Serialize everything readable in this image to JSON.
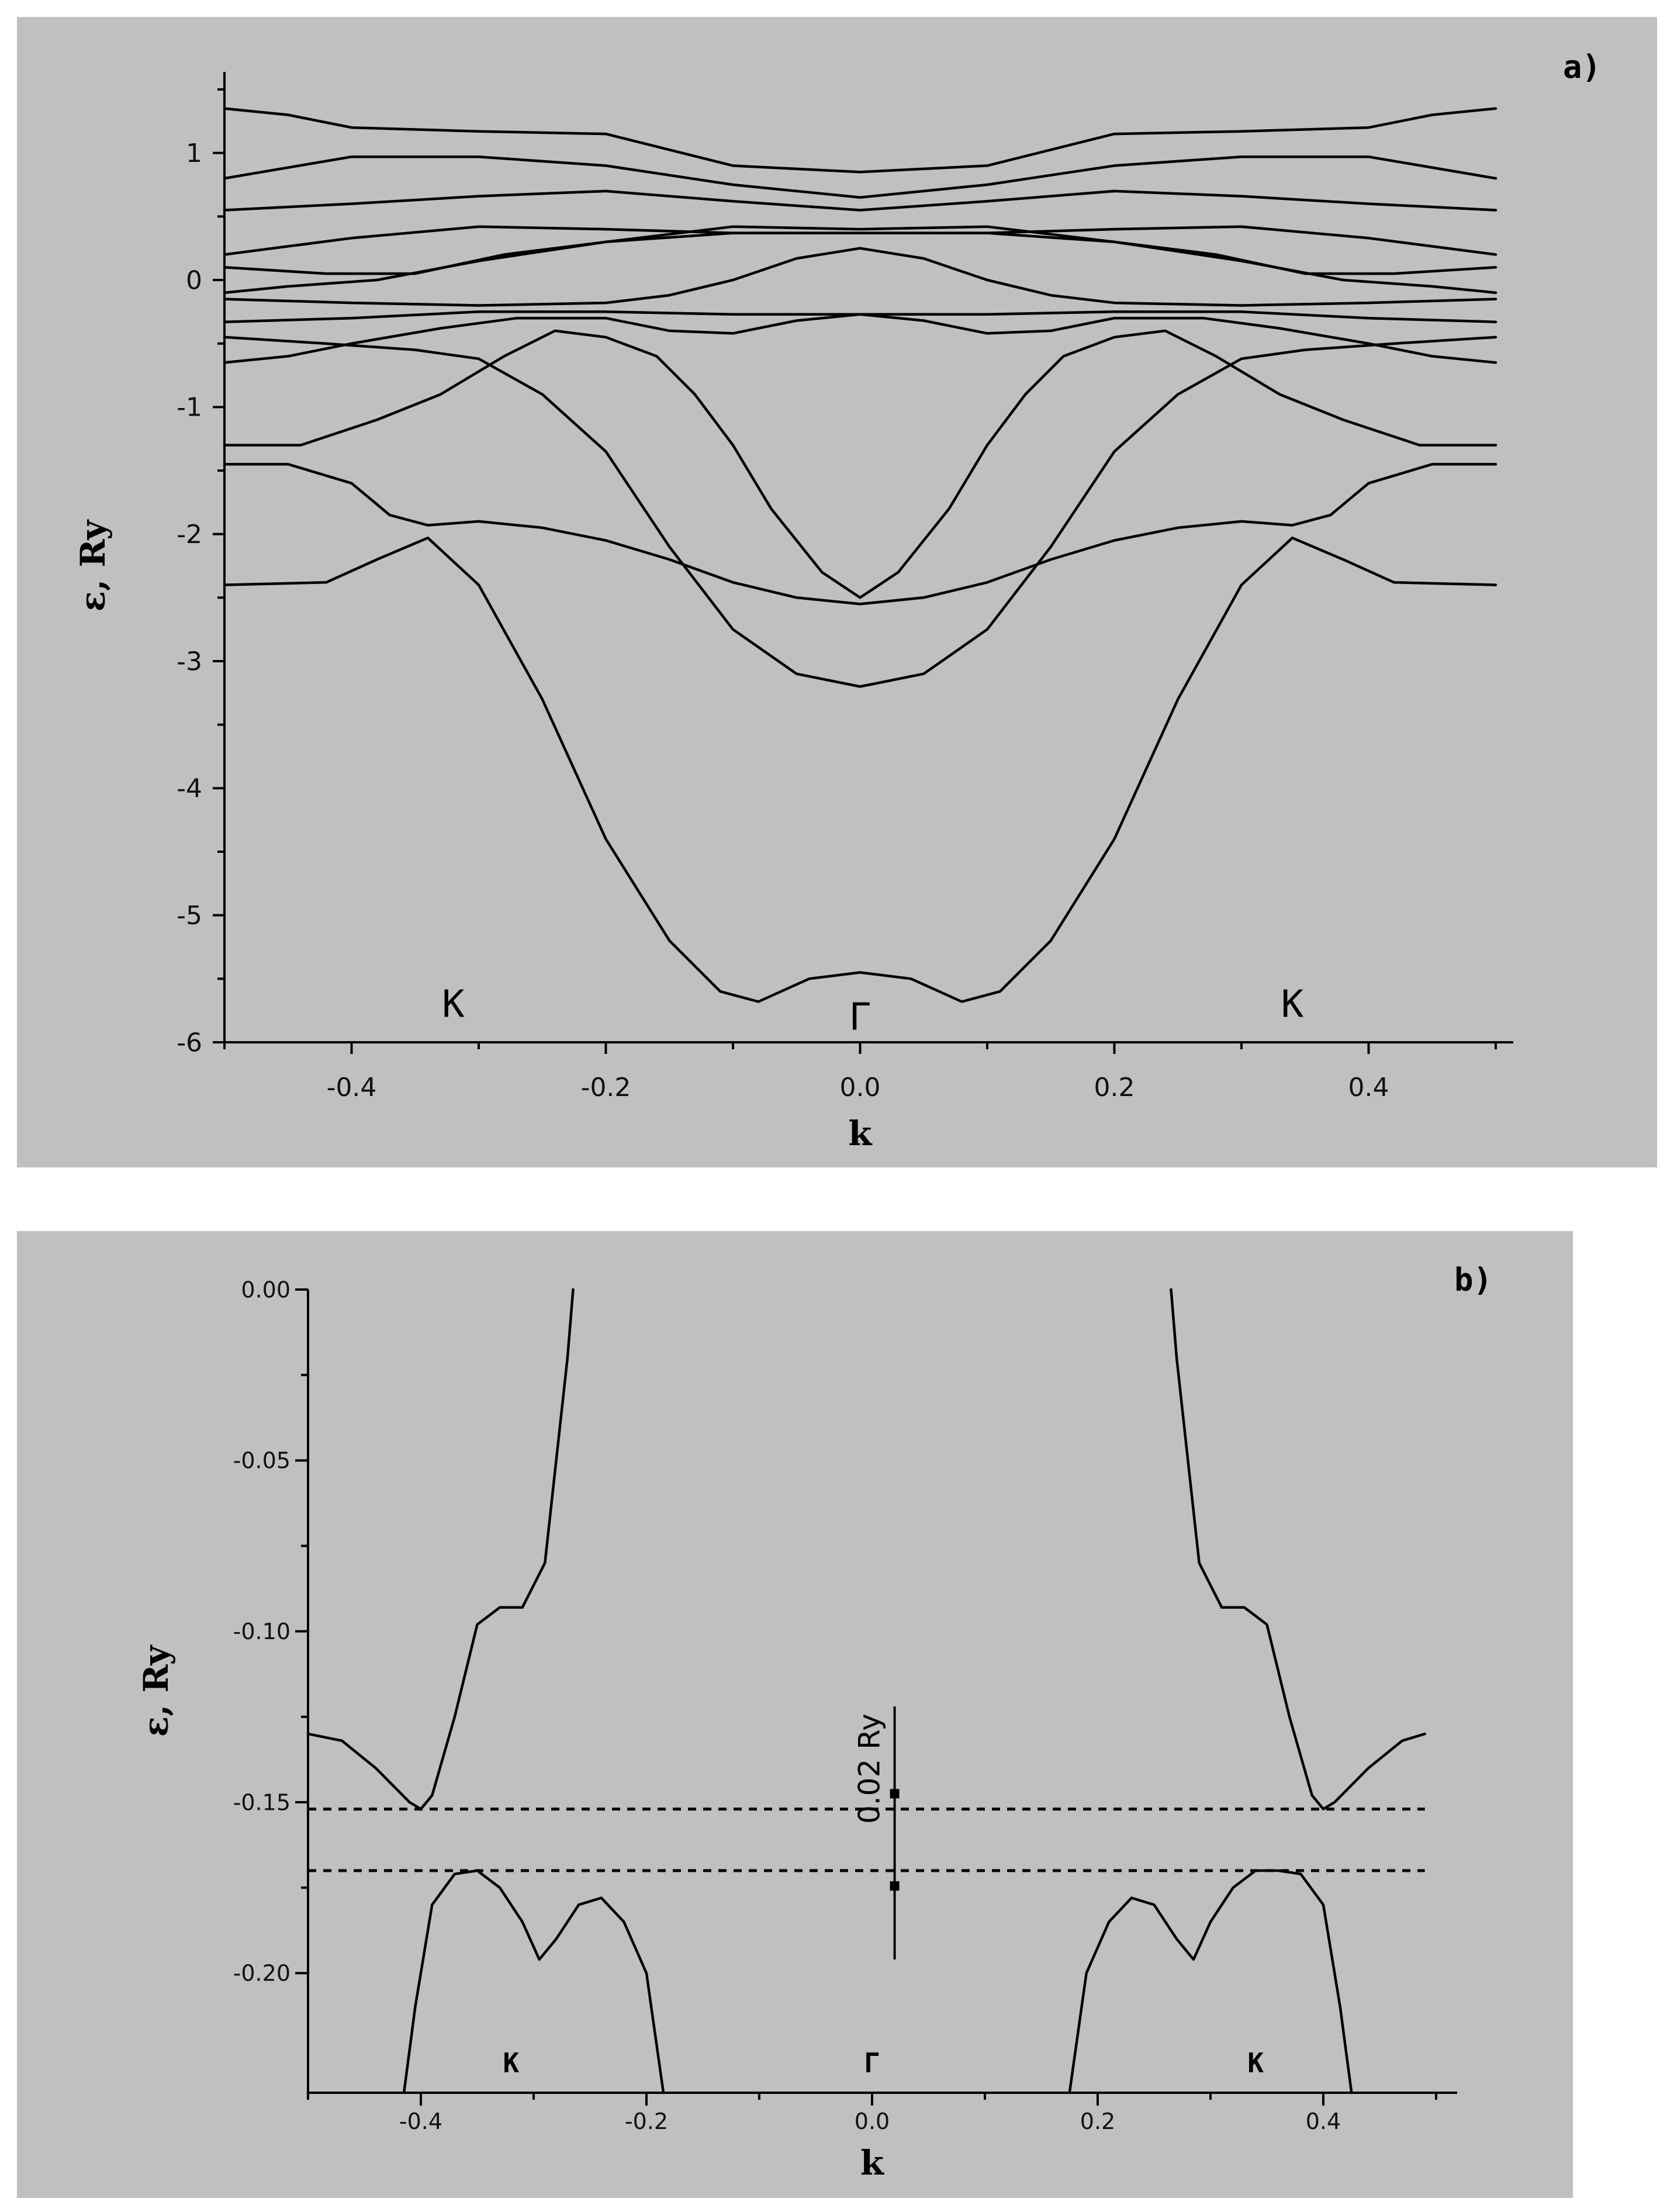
{
  "chart_data": [
    {
      "type": "line",
      "panel_label": "a)",
      "xlabel": "k",
      "ylabel": "ε, Ry",
      "xlim": [
        -0.5,
        0.5
      ],
      "ylim": [
        -6,
        1.5
      ],
      "xticks": [
        "-0.4",
        "-0.2",
        "0.0",
        "0.2",
        "0.4"
      ],
      "xtick_values": [
        -0.4,
        -0.2,
        0.0,
        0.2,
        0.4
      ],
      "yticks": [
        "1",
        "0",
        "-1",
        "-2",
        "-3",
        "-4",
        "-5",
        "-6"
      ],
      "ytick_values": [
        1,
        0,
        -1,
        -2,
        -3,
        -4,
        -5,
        -6
      ],
      "point_labels": [
        {
          "text": "K",
          "x": -0.32,
          "y": -5.8
        },
        {
          "text": "Γ",
          "x": 0.0,
          "y": -5.9
        },
        {
          "text": "K",
          "x": 0.34,
          "y": -5.8
        }
      ],
      "series": [
        {
          "points": [
            [
              0,
              -5.45
            ],
            [
              0.04,
              -5.5
            ],
            [
              0.08,
              -5.68
            ],
            [
              0.11,
              -5.6
            ],
            [
              0.15,
              -5.2
            ],
            [
              0.2,
              -4.4
            ],
            [
              0.25,
              -3.3
            ],
            [
              0.3,
              -2.4
            ],
            [
              0.34,
              -2.03
            ],
            [
              0.38,
              -2.2
            ],
            [
              0.42,
              -2.38
            ],
            [
              0.5,
              -2.4
            ]
          ]
        },
        {
          "points": [
            [
              0,
              -3.2
            ],
            [
              0.05,
              -3.1
            ],
            [
              0.1,
              -2.75
            ],
            [
              0.15,
              -2.1
            ],
            [
              0.2,
              -1.35
            ],
            [
              0.25,
              -0.9
            ],
            [
              0.3,
              -0.62
            ],
            [
              0.35,
              -0.55
            ],
            [
              0.42,
              -0.5
            ],
            [
              0.5,
              -0.45
            ]
          ]
        },
        {
          "points": [
            [
              0,
              -2.55
            ],
            [
              0.05,
              -2.5
            ],
            [
              0.1,
              -2.38
            ],
            [
              0.15,
              -2.2
            ],
            [
              0.2,
              -2.05
            ],
            [
              0.25,
              -1.95
            ],
            [
              0.3,
              -1.9
            ],
            [
              0.34,
              -1.93
            ],
            [
              0.37,
              -1.85
            ],
            [
              0.4,
              -1.6
            ],
            [
              0.45,
              -1.45
            ],
            [
              0.5,
              -1.45
            ]
          ]
        },
        {
          "points": [
            [
              0,
              -2.5
            ],
            [
              0.03,
              -2.3
            ],
            [
              0.07,
              -1.8
            ],
            [
              0.1,
              -1.3
            ],
            [
              0.13,
              -0.9
            ],
            [
              0.16,
              -0.6
            ],
            [
              0.2,
              -0.45
            ],
            [
              0.24,
              -0.4
            ],
            [
              0.28,
              -0.6
            ],
            [
              0.33,
              -0.9
            ],
            [
              0.38,
              -1.1
            ],
            [
              0.44,
              -1.3
            ],
            [
              0.5,
              -1.3
            ]
          ]
        },
        {
          "points": [
            [
              0,
              -0.27
            ],
            [
              0.05,
              -0.32
            ],
            [
              0.1,
              -0.42
            ],
            [
              0.15,
              -0.4
            ],
            [
              0.2,
              -0.3
            ],
            [
              0.27,
              -0.3
            ],
            [
              0.33,
              -0.38
            ],
            [
              0.4,
              -0.5
            ],
            [
              0.45,
              -0.6
            ],
            [
              0.5,
              -0.65
            ]
          ]
        },
        {
          "points": [
            [
              0,
              -0.27
            ],
            [
              0.1,
              -0.27
            ],
            [
              0.2,
              -0.25
            ],
            [
              0.3,
              -0.25
            ],
            [
              0.4,
              -0.3
            ],
            [
              0.5,
              -0.33
            ]
          ]
        },
        {
          "points": [
            [
              0,
              0.25
            ],
            [
              0.05,
              0.17
            ],
            [
              0.1,
              0.0
            ],
            [
              0.15,
              -0.12
            ],
            [
              0.2,
              -0.18
            ],
            [
              0.3,
              -0.2
            ],
            [
              0.4,
              -0.18
            ],
            [
              0.5,
              -0.15
            ]
          ]
        },
        {
          "points": [
            [
              0,
              0.37
            ],
            [
              0.1,
              0.37
            ],
            [
              0.2,
              0.3
            ],
            [
              0.3,
              0.15
            ],
            [
              0.38,
              0.0
            ],
            [
              0.45,
              -0.05
            ],
            [
              0.5,
              -0.1
            ]
          ]
        },
        {
          "points": [
            [
              0,
              0.4
            ],
            [
              0.1,
              0.42
            ],
            [
              0.2,
              0.3
            ],
            [
              0.28,
              0.2
            ],
            [
              0.35,
              0.05
            ],
            [
              0.42,
              0.05
            ],
            [
              0.5,
              0.1
            ]
          ]
        },
        {
          "points": [
            [
              0,
              0.37
            ],
            [
              0.1,
              0.37
            ],
            [
              0.2,
              0.4
            ],
            [
              0.3,
              0.42
            ],
            [
              0.4,
              0.33
            ],
            [
              0.5,
              0.2
            ]
          ]
        },
        {
          "points": [
            [
              0,
              0.55
            ],
            [
              0.1,
              0.62
            ],
            [
              0.2,
              0.7
            ],
            [
              0.3,
              0.66
            ],
            [
              0.4,
              0.6
            ],
            [
              0.5,
              0.55
            ]
          ]
        },
        {
          "points": [
            [
              0,
              0.65
            ],
            [
              0.1,
              0.75
            ],
            [
              0.2,
              0.9
            ],
            [
              0.3,
              0.97
            ],
            [
              0.4,
              0.97
            ],
            [
              0.5,
              0.8
            ]
          ]
        },
        {
          "points": [
            [
              0,
              0.85
            ],
            [
              0.1,
              0.9
            ],
            [
              0.2,
              1.15
            ],
            [
              0.3,
              1.17
            ],
            [
              0.4,
              1.2
            ],
            [
              0.45,
              1.3
            ],
            [
              0.5,
              1.35
            ]
          ]
        }
      ]
    },
    {
      "type": "line",
      "panel_label": "b)",
      "xlabel": "k",
      "ylabel": "ε, Ry",
      "xlim": [
        -0.5,
        0.5
      ],
      "ylim": [
        -0.235,
        0.0
      ],
      "xticks": [
        "-0.4",
        "-0.2",
        "0.0",
        "0.2",
        "0.4"
      ],
      "xtick_values": [
        -0.4,
        -0.2,
        0.0,
        0.2,
        0.4
      ],
      "yticks": [
        "0.00",
        "-0.05",
        "-0.10",
        "-0.15",
        "-0.20"
      ],
      "ytick_values": [
        0.0,
        -0.05,
        -0.1,
        -0.15,
        -0.2
      ],
      "point_labels": [
        {
          "text": "K",
          "x": -0.32,
          "y": -0.229
        },
        {
          "text": "Γ",
          "x": 0.0,
          "y": -0.229
        },
        {
          "text": "K",
          "x": 0.34,
          "y": -0.229
        }
      ],
      "reference_lines": [
        -0.152,
        -0.17
      ],
      "scale_bar": {
        "label": "0.02 Ry",
        "x": 0.02,
        "y_range": [
          -0.122,
          -0.196
        ],
        "marks": [
          -0.1475,
          -0.1745
        ]
      },
      "series": [
        {
          "points": [
            [
              -0.5,
              -0.13
            ],
            [
              -0.47,
              -0.132
            ],
            [
              -0.44,
              -0.14
            ],
            [
              -0.41,
              -0.15
            ],
            [
              -0.4,
              -0.152
            ],
            [
              -0.39,
              -0.148
            ],
            [
              -0.37,
              -0.125
            ],
            [
              -0.35,
              -0.098
            ],
            [
              -0.33,
              -0.093
            ],
            [
              -0.31,
              -0.093
            ],
            [
              -0.29,
              -0.08
            ],
            [
              -0.28,
              -0.05
            ],
            [
              -0.27,
              -0.02
            ],
            [
              -0.265,
              0.0
            ]
          ]
        },
        {
          "points": [
            [
              0.265,
              0.0
            ],
            [
              0.27,
              -0.02
            ],
            [
              0.28,
              -0.05
            ],
            [
              0.29,
              -0.08
            ],
            [
              0.31,
              -0.093
            ],
            [
              0.33,
              -0.093
            ],
            [
              0.35,
              -0.098
            ],
            [
              0.37,
              -0.125
            ],
            [
              0.39,
              -0.148
            ],
            [
              0.4,
              -0.152
            ],
            [
              0.41,
              -0.15
            ],
            [
              0.44,
              -0.14
            ],
            [
              0.47,
              -0.132
            ],
            [
              0.49,
              -0.13
            ]
          ]
        },
        {
          "points": [
            [
              -0.415,
              -0.235
            ],
            [
              -0.405,
              -0.21
            ],
            [
              -0.39,
              -0.18
            ],
            [
              -0.37,
              -0.171
            ],
            [
              -0.35,
              -0.17
            ],
            [
              -0.33,
              -0.175
            ],
            [
              -0.31,
              -0.185
            ],
            [
              -0.295,
              -0.196
            ],
            [
              -0.28,
              -0.19
            ],
            [
              -0.26,
              -0.18
            ],
            [
              -0.24,
              -0.178
            ],
            [
              -0.22,
              -0.185
            ],
            [
              -0.2,
              -0.2
            ],
            [
              -0.185,
              -0.235
            ]
          ]
        },
        {
          "points": [
            [
              0.175,
              -0.235
            ],
            [
              0.19,
              -0.2
            ],
            [
              0.21,
              -0.185
            ],
            [
              0.23,
              -0.178
            ],
            [
              0.25,
              -0.18
            ],
            [
              0.27,
              -0.19
            ],
            [
              0.285,
              -0.196
            ],
            [
              0.3,
              -0.185
            ],
            [
              0.32,
              -0.175
            ],
            [
              0.34,
              -0.17
            ],
            [
              0.36,
              -0.17
            ],
            [
              0.38,
              -0.171
            ],
            [
              0.4,
              -0.18
            ],
            [
              0.415,
              -0.21
            ],
            [
              0.425,
              -0.235
            ]
          ]
        }
      ]
    }
  ]
}
